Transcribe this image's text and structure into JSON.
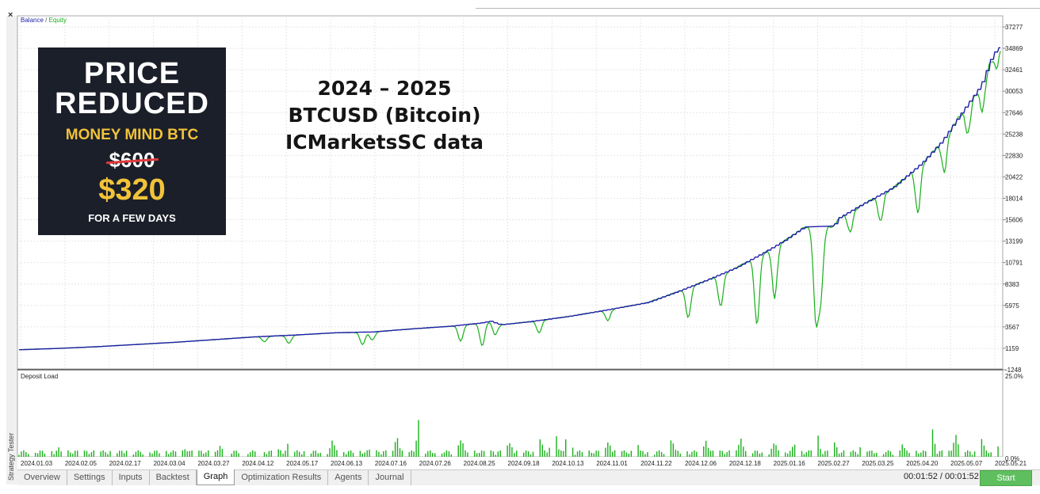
{
  "window": {
    "close_glyph": "×"
  },
  "side_tab": {
    "label": "Strategy Tester"
  },
  "promo": {
    "line1": "PRICE",
    "line2": "REDUCED",
    "brand": "MONEY MIND BTC",
    "old_price": "$600",
    "new_price": "$320",
    "note": "FOR A FEW DAYS",
    "background_color": "#1b1f29",
    "accent_color": "#f2c23a",
    "strike_color": "#e03a3a"
  },
  "headline": {
    "line1": "2024 – 2025",
    "line2": "BTCUSD (Bitcoin)",
    "line3": "ICMarketsSC data"
  },
  "tabs": [
    {
      "label": "Overview",
      "active": false
    },
    {
      "label": "Settings",
      "active": false
    },
    {
      "label": "Inputs",
      "active": false
    },
    {
      "label": "Backtest",
      "active": false
    },
    {
      "label": "Graph",
      "active": true
    },
    {
      "label": "Optimization Results",
      "active": false
    },
    {
      "label": "Agents",
      "active": false
    },
    {
      "label": "Journal",
      "active": false
    }
  ],
  "status": {
    "timer": "00:01:52 / 00:01:52"
  },
  "start_button": {
    "label": "Start",
    "color": "#5fbf5f"
  },
  "chart_data": [
    {
      "type": "line",
      "legend": {
        "balance_label": "Balance",
        "separator": " / ",
        "equity_label": "Equity",
        "placement": "top-left"
      },
      "ylim": [
        -1248,
        37277
      ],
      "y_ticks": [
        "37277",
        "34869",
        "32461",
        "30053",
        "27646",
        "25238",
        "22830",
        "20422",
        "18014",
        "15606",
        "13199",
        "10791",
        "8383",
        "5975",
        "3567",
        "1159",
        "-1248"
      ],
      "x_ticks": [
        "2024.01.03",
        "2024.02.05",
        "2024.02.17",
        "2024.03.04",
        "2024.03.27",
        "2024.04.12",
        "2024.05.17",
        "2024.06.13",
        "2024.07.16",
        "2024.07.26",
        "2024.08.25",
        "2024.09.18",
        "2024.10.13",
        "2024.11.01",
        "2024.11.22",
        "2024.12.06",
        "2024.12.18",
        "2025.01.16",
        "2025.02.27",
        "2025.03.25",
        "2025.04.20",
        "2025.05.07",
        "2025.05.21"
      ],
      "series": [
        {
          "name": "Balance",
          "color": "#1f1fa8",
          "points": [
            [
              0,
              1000
            ],
            [
              0.04,
              1150
            ],
            [
              0.08,
              1350
            ],
            [
              0.12,
              1600
            ],
            [
              0.16,
              1850
            ],
            [
              0.2,
              2150
            ],
            [
              0.24,
              2450
            ],
            [
              0.28,
              2650
            ],
            [
              0.32,
              2900
            ],
            [
              0.36,
              3000
            ],
            [
              0.4,
              3350
            ],
            [
              0.44,
              3650
            ],
            [
              0.47,
              4000
            ],
            [
              0.48,
              4200
            ],
            [
              0.49,
              3800
            ],
            [
              0.52,
              4150
            ],
            [
              0.56,
              4750
            ],
            [
              0.6,
              5500
            ],
            [
              0.64,
              6300
            ],
            [
              0.67,
              7500
            ],
            [
              0.7,
              8800
            ],
            [
              0.73,
              10200
            ],
            [
              0.76,
              12000
            ],
            [
              0.78,
              13300
            ],
            [
              0.8,
              14800
            ],
            [
              0.83,
              14900
            ],
            [
              0.835,
              15800
            ],
            [
              0.86,
              17400
            ],
            [
              0.89,
              19200
            ],
            [
              0.92,
              22000
            ],
            [
              0.94,
              24400
            ],
            [
              0.96,
              27600
            ],
            [
              0.98,
              30700
            ],
            [
              0.992,
              34200
            ],
            [
              1.0,
              35100
            ]
          ]
        },
        {
          "name": "Equity",
          "color": "#19b019",
          "base": "balance",
          "drawdowns": [
            [
              0.25,
              -600
            ],
            [
              0.275,
              -900
            ],
            [
              0.35,
              -1400
            ],
            [
              0.36,
              -900
            ],
            [
              0.45,
              -1800
            ],
            [
              0.472,
              -2600
            ],
            [
              0.485,
              -1300
            ],
            [
              0.53,
              -1400
            ],
            [
              0.6,
              -1200
            ],
            [
              0.682,
              -3400
            ],
            [
              0.715,
              -3600
            ],
            [
              0.752,
              -7700
            ],
            [
              0.77,
              -5800
            ],
            [
              0.812,
              -10000
            ],
            [
              0.817,
              -7400
            ],
            [
              0.847,
              -2300
            ],
            [
              0.878,
              -3000
            ],
            [
              0.916,
              -5200
            ],
            [
              0.943,
              -3800
            ],
            [
              0.967,
              -3300
            ],
            [
              0.982,
              -3200
            ],
            [
              0.996,
              -1800
            ]
          ]
        }
      ]
    },
    {
      "type": "bar",
      "title": "Deposit Load",
      "ylim": [
        0,
        25
      ],
      "y_ticks": [
        "25.0%",
        "0.0%"
      ],
      "color": "#19b019",
      "spikes": [
        [
          0.04,
          3
        ],
        [
          0.11,
          2
        ],
        [
          0.17,
          2.5
        ],
        [
          0.205,
          3.5
        ],
        [
          0.265,
          2.5
        ],
        [
          0.275,
          4.5
        ],
        [
          0.32,
          5.5
        ],
        [
          0.36,
          4
        ],
        [
          0.385,
          6
        ],
        [
          0.408,
          12
        ],
        [
          0.45,
          6
        ],
        [
          0.5,
          5
        ],
        [
          0.53,
          8
        ],
        [
          0.545,
          11
        ],
        [
          0.56,
          9
        ],
        [
          0.6,
          5
        ],
        [
          0.63,
          4
        ],
        [
          0.665,
          6
        ],
        [
          0.7,
          5
        ],
        [
          0.735,
          6
        ],
        [
          0.77,
          5
        ],
        [
          0.79,
          4
        ],
        [
          0.812,
          11
        ],
        [
          0.83,
          6
        ],
        [
          0.86,
          5
        ],
        [
          0.9,
          4
        ],
        [
          0.93,
          9
        ],
        [
          0.955,
          7
        ],
        [
          0.98,
          7
        ],
        [
          0.995,
          5
        ]
      ]
    }
  ]
}
